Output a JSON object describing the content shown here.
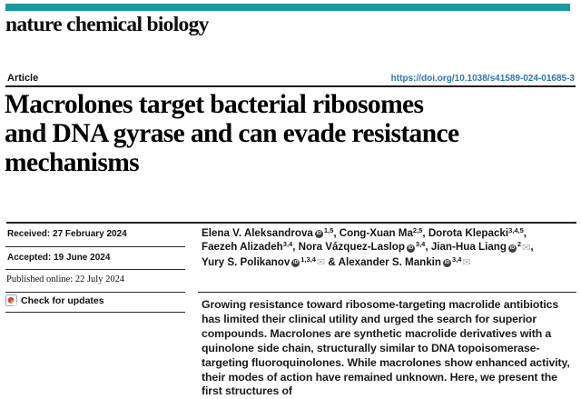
{
  "masthead": {
    "journal": "nature chemical biology"
  },
  "article_header": {
    "type_label": "Article",
    "doi": "https://doi.org/10.1038/s41589-024-01685-3"
  },
  "title": {
    "lines": [
      "Macrolones target bacterial ribosomes",
      "and DNA gyrase and can evade resistance",
      "mechanisms"
    ]
  },
  "meta": {
    "received": "Received: 27 February 2024",
    "accepted": "Accepted: 19 June 2024",
    "published": "Published online: 22 July 2024",
    "check_updates": "Check for updates"
  },
  "authors": {
    "list": [
      {
        "name": "Elena V. Aleksandrova",
        "orcid": true,
        "sup": "1,5",
        "mail": false,
        "sep": ", ",
        "br": false
      },
      {
        "name": "Cong-Xuan Ma",
        "orcid": false,
        "sup": "2,5",
        "mail": false,
        "sep": ", ",
        "br": false
      },
      {
        "name": "Dorota Klepacki",
        "orcid": false,
        "sup": "3,4,5",
        "mail": false,
        "sep": ",",
        "br": true
      },
      {
        "name": "Faezeh Alizadeh",
        "orcid": false,
        "sup": "3,4",
        "mail": false,
        "sep": ", ",
        "br": false
      },
      {
        "name": "Nora Vázquez-Laslop",
        "orcid": true,
        "sup": "3,4",
        "mail": false,
        "sep": ", ",
        "br": false
      },
      {
        "name": "Jian-Hua Liang",
        "orcid": true,
        "sup": "2",
        "mail": true,
        "sep": ",",
        "br": true
      },
      {
        "name": "Yury S. Polikanov",
        "orcid": true,
        "sup": "1,3,4",
        "mail": true,
        "sep": " & ",
        "br": false
      },
      {
        "name": "Alexander S. Mankin",
        "orcid": true,
        "sup": "3,4",
        "mail": true,
        "sep": "",
        "br": false
      }
    ]
  },
  "abstract": "Growing resistance toward ribosome-targeting macrolide antibiotics has limited their clinical utility and urged the search for superior compounds. Macrolones are synthetic macrolide derivatives with a quinolone side chain, structurally similar to DNA topoisomerase-targeting fluoroquinolones. While macrolones show enhanced activity, their modes of action have remained unknown. Here, we present the first structures of",
  "icons": {
    "orcid_label": "iD",
    "mail_glyph": "✉",
    "crossmark": "check-for-updates-crossmark"
  },
  "colors": {
    "brand_teal": "#18999C",
    "doi_blue": "#2E75B6",
    "rule_dark": "#1C1C1C",
    "crossmark_red": "#D64541",
    "crossmark_yellow": "#F5A623",
    "crossmark_border": "#8FA4C0"
  }
}
